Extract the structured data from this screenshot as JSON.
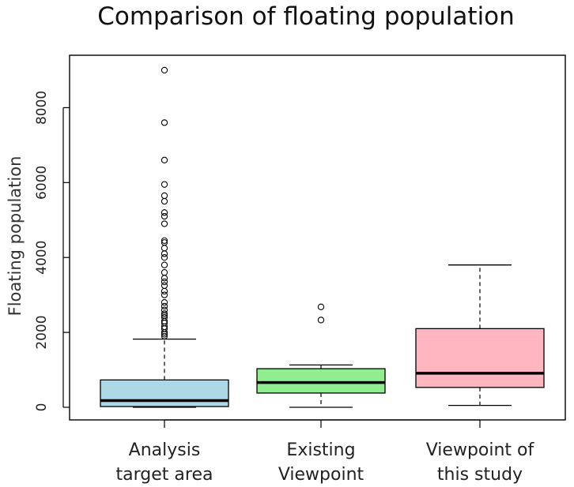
{
  "chart_data": {
    "type": "boxplot",
    "title": "Comparison of floating population",
    "xlabel": "",
    "ylabel": "Floating population",
    "ylim": [
      0,
      9000
    ],
    "yticks": [
      0,
      2000,
      4000,
      6000,
      8000
    ],
    "grid": false,
    "categories": [
      [
        "Analysis",
        "target area"
      ],
      [
        "Existing",
        "Viewpoint"
      ],
      [
        "Viewpoint of",
        "this study"
      ]
    ],
    "boxes": [
      {
        "color": "#add8e6",
        "whisker_low": 0,
        "q1": 20,
        "median": 180,
        "q3": 730,
        "whisker_high": 1820,
        "outliers": [
          1900,
          1950,
          2000,
          2100,
          2150,
          2250,
          2300,
          2400,
          2450,
          2500,
          2600,
          2700,
          2800,
          3000,
          3100,
          3250,
          3350,
          3450,
          3600,
          3800,
          4000,
          4100,
          4250,
          4400,
          4450,
          4900,
          5100,
          5200,
          5500,
          5650,
          5950,
          6600,
          7600,
          9000
        ]
      },
      {
        "color": "#90ee90",
        "whisker_low": 0,
        "q1": 380,
        "median": 660,
        "q3": 1030,
        "whisker_high": 1130,
        "outliers": [
          2330,
          2680
        ]
      },
      {
        "color": "#ffb6c1",
        "whisker_low": 50,
        "q1": 530,
        "median": 910,
        "q3": 2100,
        "whisker_high": 3800,
        "outliers": []
      }
    ]
  }
}
